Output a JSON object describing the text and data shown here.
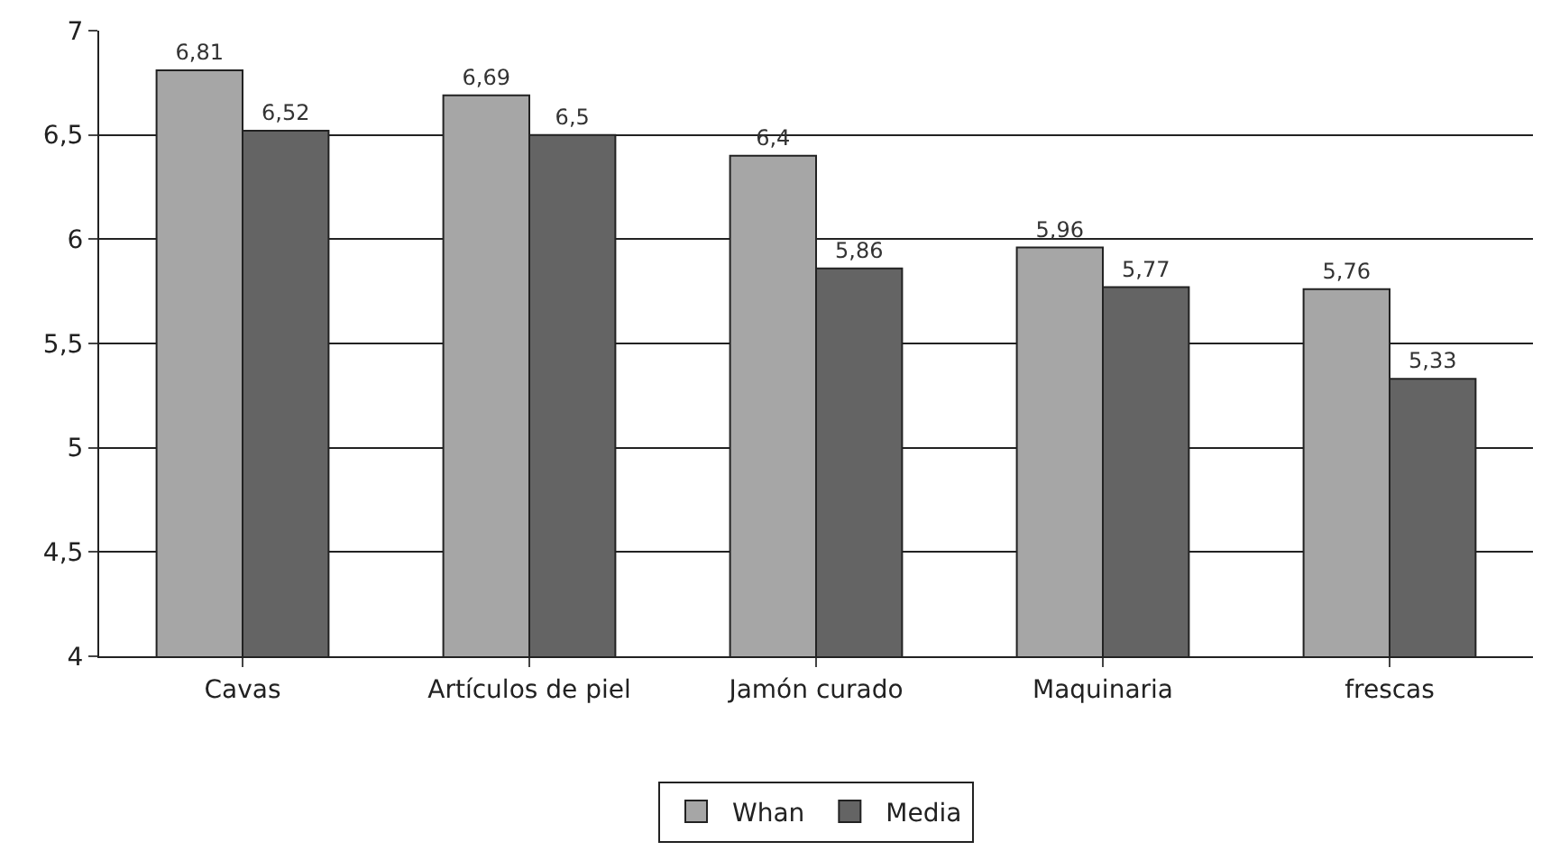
{
  "chart_data": {
    "type": "bar",
    "categories": [
      "Cavas",
      "Artículos de piel",
      "Jamón curado",
      "Maquinaria",
      "frescas"
    ],
    "series": [
      {
        "name": "Whan",
        "color": "#a6a6a6",
        "values": [
          6.81,
          6.69,
          6.4,
          5.96,
          5.76
        ],
        "value_labels": [
          "6,81",
          "6,69",
          "6,4",
          "5,96",
          "5,76"
        ]
      },
      {
        "name": "Media",
        "color": "#646464",
        "values": [
          6.52,
          6.5,
          5.86,
          5.77,
          5.33
        ],
        "value_labels": [
          "6,52",
          "6,5",
          "5,86",
          "5,77",
          "5,33"
        ]
      }
    ],
    "ylim": [
      4,
      7
    ],
    "yticks": [
      4,
      {
        "value": 4.5,
        "label": "4,5"
      },
      5,
      {
        "value": 5.5,
        "label": "5,5"
      },
      6,
      {
        "value": 6.5,
        "label": "6,5"
      },
      7
    ],
    "grid": "y",
    "legend": "bottom"
  }
}
